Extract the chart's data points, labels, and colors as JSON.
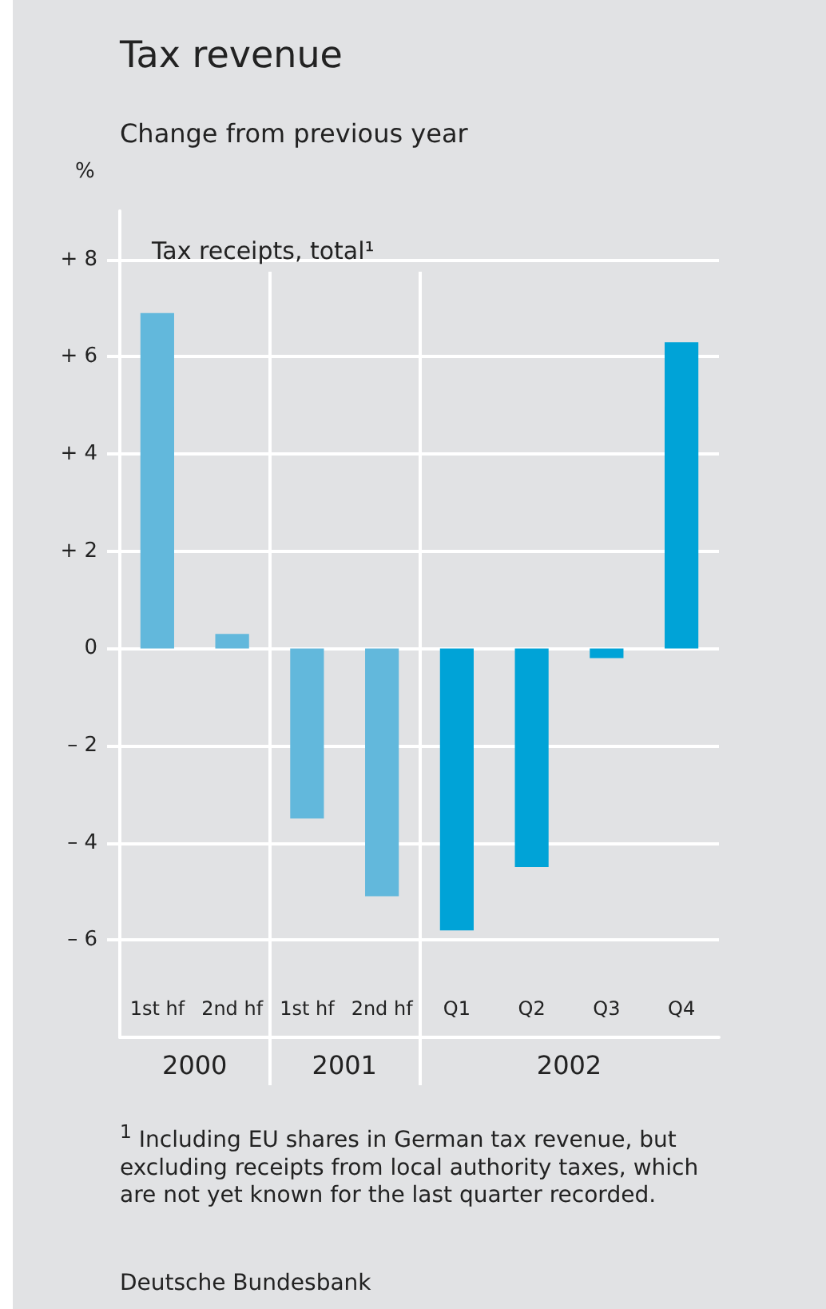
{
  "chart_data": {
    "type": "bar",
    "title": "Tax revenue",
    "subtitle": "Change from previous year",
    "ylabel": "%",
    "categories": [
      "1st hf",
      "2nd hf",
      "1st hf",
      "2nd hf",
      "Q1",
      "Q2",
      "Q3",
      "Q4"
    ],
    "series": [
      {
        "name": "Tax receipts, total¹",
        "values": [
          6.9,
          0.3,
          -3.5,
          -5.1,
          -5.8,
          -4.5,
          -0.2,
          6.3
        ],
        "colors": [
          "#62b8dc",
          "#62b8dc",
          "#62b8dc",
          "#62b8dc",
          "#00a3d7",
          "#00a3d7",
          "#00a3d7",
          "#00a3d7"
        ]
      }
    ],
    "ylim": [
      -8,
      9
    ],
    "yticks": [
      {
        "value": -6,
        "label": "– 6"
      },
      {
        "value": -4,
        "label": "– 4"
      },
      {
        "value": -2,
        "label": "– 2"
      },
      0,
      {
        "value": 2,
        "label": "+ 2"
      },
      {
        "value": 4,
        "label": "+ 4"
      },
      {
        "value": 6,
        "label": "+ 6"
      },
      {
        "value": 8,
        "label": "+ 8"
      }
    ],
    "grid": "y",
    "annotations": [
      "2000",
      "2001",
      "2002",
      "$^{1}$ Including EU shares in German tax revenue, but excluding receipts from local authority taxes, which are not yet known for the last quarter recorded.",
      "Deutsche Bundesbank"
    ]
  }
}
